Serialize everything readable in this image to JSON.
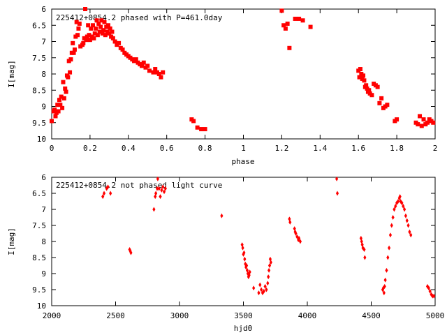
{
  "chart_data": [
    {
      "type": "scatter",
      "title": "225412+0854.2 phased with P=461.0day",
      "xlabel": "phase",
      "ylabel": "I[mag]",
      "xlim": [
        0,
        2
      ],
      "ylim": [
        6,
        10
      ],
      "y_inverted": true,
      "xticks": [
        "0",
        "0.2",
        "0.4",
        "0.6",
        "0.8",
        "1",
        "1.2",
        "1.4",
        "1.6",
        "1.8",
        "2"
      ],
      "yticks": [
        "6",
        "6.5",
        "7",
        "7.5",
        "8",
        "8.5",
        "9",
        "9.5",
        "10"
      ],
      "marker": "filled square",
      "color": "#ff0000",
      "grid": false,
      "points": [
        [
          0.0,
          9.45
        ],
        [
          0.01,
          9.15
        ],
        [
          0.015,
          9.1
        ],
        [
          0.02,
          9.3
        ],
        [
          0.025,
          9.2
        ],
        [
          0.03,
          8.95
        ],
        [
          0.035,
          9.15
        ],
        [
          0.04,
          8.8
        ],
        [
          0.045,
          8.95
        ],
        [
          0.05,
          8.7
        ],
        [
          0.055,
          9.05
        ],
        [
          0.06,
          8.25
        ],
        [
          0.065,
          8.75
        ],
        [
          0.07,
          8.45
        ],
        [
          0.075,
          8.55
        ],
        [
          0.08,
          8.05
        ],
        [
          0.085,
          8.1
        ],
        [
          0.09,
          7.6
        ],
        [
          0.095,
          7.95
        ],
        [
          0.1,
          7.55
        ],
        [
          0.105,
          7.35
        ],
        [
          0.11,
          7.05
        ],
        [
          0.115,
          7.35
        ],
        [
          0.12,
          7.25
        ],
        [
          0.125,
          6.85
        ],
        [
          0.13,
          6.4
        ],
        [
          0.135,
          6.8
        ],
        [
          0.14,
          6.6
        ],
        [
          0.145,
          6.45
        ],
        [
          0.15,
          7.15
        ],
        [
          0.16,
          7.1
        ],
        [
          0.165,
          7.05
        ],
        [
          0.17,
          6.9
        ],
        [
          0.175,
          6.0
        ],
        [
          0.18,
          6.95
        ],
        [
          0.185,
          6.85
        ],
        [
          0.19,
          6.5
        ],
        [
          0.195,
          6.8
        ],
        [
          0.2,
          6.95
        ],
        [
          0.205,
          6.6
        ],
        [
          0.21,
          6.85
        ],
        [
          0.215,
          6.5
        ],
        [
          0.22,
          6.9
        ],
        [
          0.225,
          6.75
        ],
        [
          0.23,
          6.6
        ],
        [
          0.235,
          6.35
        ],
        [
          0.24,
          6.8
        ],
        [
          0.245,
          6.45
        ],
        [
          0.25,
          6.7
        ],
        [
          0.255,
          6.55
        ],
        [
          0.26,
          6.35
        ],
        [
          0.265,
          6.75
        ],
        [
          0.27,
          6.65
        ],
        [
          0.275,
          6.4
        ],
        [
          0.28,
          6.8
        ],
        [
          0.285,
          6.55
        ],
        [
          0.29,
          6.7
        ],
        [
          0.295,
          6.5
        ],
        [
          0.3,
          6.75
        ],
        [
          0.305,
          6.6
        ],
        [
          0.31,
          6.85
        ],
        [
          0.315,
          6.7
        ],
        [
          0.32,
          6.9
        ],
        [
          0.33,
          7.0
        ],
        [
          0.34,
          7.1
        ],
        [
          0.35,
          7.05
        ],
        [
          0.36,
          7.2
        ],
        [
          0.37,
          7.25
        ],
        [
          0.38,
          7.35
        ],
        [
          0.39,
          7.4
        ],
        [
          0.4,
          7.45
        ],
        [
          0.41,
          7.5
        ],
        [
          0.42,
          7.55
        ],
        [
          0.43,
          7.6
        ],
        [
          0.44,
          7.55
        ],
        [
          0.45,
          7.65
        ],
        [
          0.46,
          7.7
        ],
        [
          0.47,
          7.75
        ],
        [
          0.48,
          7.65
        ],
        [
          0.49,
          7.8
        ],
        [
          0.5,
          7.75
        ],
        [
          0.51,
          7.9
        ],
        [
          0.53,
          7.95
        ],
        [
          0.54,
          7.85
        ],
        [
          0.55,
          7.95
        ],
        [
          0.56,
          8.0
        ],
        [
          0.57,
          8.1
        ],
        [
          0.58,
          7.95
        ],
        [
          0.73,
          9.4
        ],
        [
          0.74,
          9.45
        ],
        [
          0.76,
          9.65
        ],
        [
          0.78,
          9.7
        ],
        [
          0.8,
          9.7
        ],
        [
          1.2,
          6.05
        ],
        [
          1.21,
          6.5
        ],
        [
          1.22,
          6.6
        ],
        [
          1.23,
          6.45
        ],
        [
          1.24,
          7.2
        ],
        [
          1.27,
          6.3
        ],
        [
          1.29,
          6.3
        ],
        [
          1.31,
          6.35
        ],
        [
          1.35,
          6.55
        ],
        [
          1.6,
          7.9
        ],
        [
          1.605,
          8.1
        ],
        [
          1.61,
          7.85
        ],
        [
          1.615,
          8.0
        ],
        [
          1.62,
          8.15
        ],
        [
          1.625,
          8.05
        ],
        [
          1.63,
          8.2
        ],
        [
          1.635,
          8.4
        ],
        [
          1.64,
          8.35
        ],
        [
          1.645,
          8.45
        ],
        [
          1.65,
          8.55
        ],
        [
          1.655,
          8.5
        ],
        [
          1.66,
          8.6
        ],
        [
          1.67,
          8.65
        ],
        [
          1.68,
          8.3
        ],
        [
          1.69,
          8.35
        ],
        [
          1.7,
          8.4
        ],
        [
          1.71,
          8.9
        ],
        [
          1.72,
          8.75
        ],
        [
          1.73,
          9.05
        ],
        [
          1.74,
          9.0
        ],
        [
          1.75,
          8.95
        ],
        [
          1.79,
          9.45
        ],
        [
          1.8,
          9.4
        ],
        [
          1.9,
          9.5
        ],
        [
          1.91,
          9.55
        ],
        [
          1.92,
          9.3
        ],
        [
          1.93,
          9.6
        ],
        [
          1.94,
          9.4
        ],
        [
          1.95,
          9.55
        ],
        [
          1.96,
          9.5
        ],
        [
          1.97,
          9.4
        ],
        [
          1.98,
          9.45
        ],
        [
          1.99,
          9.5
        ]
      ]
    },
    {
      "type": "scatter",
      "title": "225412+0854.2 not phased light curve",
      "xlabel": "hjd0",
      "ylabel": "I[mag]",
      "xlim": [
        2000,
        5000
      ],
      "ylim": [
        6,
        10
      ],
      "y_inverted": true,
      "xticks": [
        "2000",
        "2500",
        "3000",
        "3500",
        "4000",
        "4500",
        "5000"
      ],
      "yticks": [
        "6",
        "6.5",
        "7",
        "7.5",
        "8",
        "8.5",
        "9",
        "9.5",
        "10"
      ],
      "marker": "small diamond",
      "color": "#ff0000",
      "grid": false,
      "points": [
        [
          2400,
          6.6
        ],
        [
          2410,
          6.5
        ],
        [
          2430,
          6.35
        ],
        [
          2440,
          6.3
        ],
        [
          2460,
          6.5
        ],
        [
          2610,
          8.25
        ],
        [
          2615,
          8.3
        ],
        [
          2620,
          8.35
        ],
        [
          2800,
          7.0
        ],
        [
          2810,
          6.6
        ],
        [
          2815,
          6.5
        ],
        [
          2825,
          6.35
        ],
        [
          2830,
          6.05
        ],
        [
          2840,
          6.35
        ],
        [
          2850,
          6.6
        ],
        [
          2860,
          6.4
        ],
        [
          2870,
          6.3
        ],
        [
          2880,
          6.45
        ],
        [
          2890,
          6.35
        ],
        [
          3330,
          7.2
        ],
        [
          3490,
          8.1
        ],
        [
          3495,
          8.2
        ],
        [
          3500,
          8.4
        ],
        [
          3505,
          8.35
        ],
        [
          3510,
          8.55
        ],
        [
          3515,
          8.7
        ],
        [
          3520,
          8.8
        ],
        [
          3525,
          8.75
        ],
        [
          3530,
          8.9
        ],
        [
          3535,
          9.0
        ],
        [
          3540,
          9.1
        ],
        [
          3545,
          9.05
        ],
        [
          3550,
          8.95
        ],
        [
          3580,
          9.45
        ],
        [
          3620,
          9.6
        ],
        [
          3630,
          9.35
        ],
        [
          3640,
          9.5
        ],
        [
          3650,
          9.6
        ],
        [
          3660,
          9.55
        ],
        [
          3670,
          9.4
        ],
        [
          3680,
          9.5
        ],
        [
          3690,
          9.3
        ],
        [
          3695,
          9.1
        ],
        [
          3700,
          8.9
        ],
        [
          3705,
          8.75
        ],
        [
          3710,
          8.55
        ],
        [
          3715,
          8.65
        ],
        [
          3860,
          7.3
        ],
        [
          3865,
          7.4
        ],
        [
          3900,
          7.6
        ],
        [
          3905,
          7.7
        ],
        [
          3910,
          7.75
        ],
        [
          3920,
          7.85
        ],
        [
          3930,
          7.95
        ],
        [
          3935,
          7.9
        ],
        [
          3945,
          8.0
        ],
        [
          4230,
          6.05
        ],
        [
          4235,
          6.5
        ],
        [
          4420,
          7.9
        ],
        [
          4425,
          8.0
        ],
        [
          4430,
          8.1
        ],
        [
          4435,
          8.2
        ],
        [
          4445,
          8.25
        ],
        [
          4450,
          8.5
        ],
        [
          4590,
          9.5
        ],
        [
          4595,
          9.45
        ],
        [
          4600,
          9.6
        ],
        [
          4605,
          9.4
        ],
        [
          4610,
          9.2
        ],
        [
          4620,
          8.9
        ],
        [
          4630,
          8.5
        ],
        [
          4640,
          8.2
        ],
        [
          4650,
          7.8
        ],
        [
          4660,
          7.5
        ],
        [
          4670,
          7.25
        ],
        [
          4680,
          7.0
        ],
        [
          4690,
          6.9
        ],
        [
          4700,
          6.8
        ],
        [
          4710,
          6.75
        ],
        [
          4720,
          6.65
        ],
        [
          4725,
          6.6
        ],
        [
          4730,
          6.75
        ],
        [
          4740,
          6.8
        ],
        [
          4750,
          6.9
        ],
        [
          4760,
          7.0
        ],
        [
          4770,
          7.2
        ],
        [
          4780,
          7.35
        ],
        [
          4790,
          7.5
        ],
        [
          4800,
          7.7
        ],
        [
          4810,
          7.8
        ],
        [
          4940,
          9.4
        ],
        [
          4950,
          9.45
        ],
        [
          4960,
          9.55
        ],
        [
          4970,
          9.65
        ],
        [
          4980,
          9.7
        ],
        [
          4990,
          9.7
        ]
      ]
    }
  ]
}
